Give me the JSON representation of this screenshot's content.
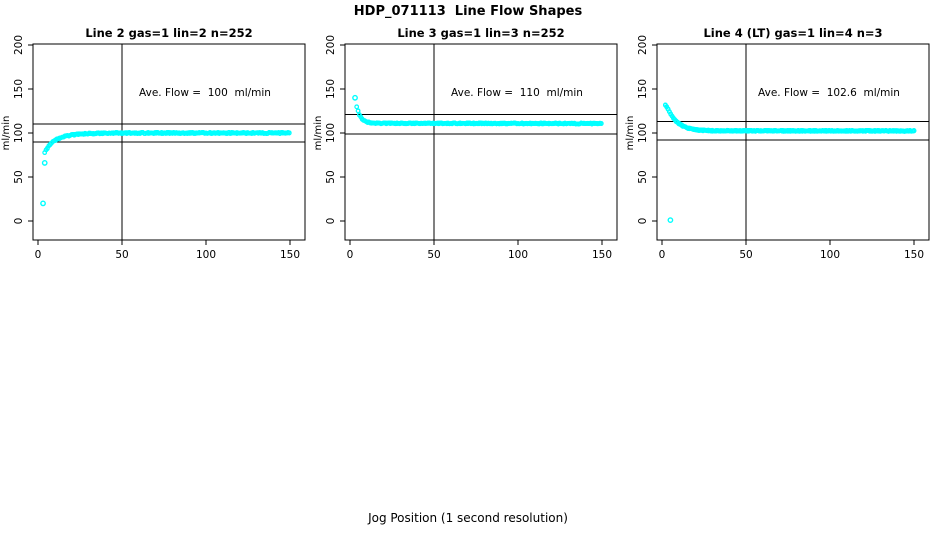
{
  "figure": {
    "title": "HDP_071113  Line Flow Shapes",
    "xlabel": "Jog Position (1 second resolution)",
    "ylabel": "ml/min",
    "background_color": "#FFFFFF",
    "point_color": "#00FFFF",
    "line_color": "#000000"
  },
  "chart_data": {
    "type": "scatter",
    "title": "HDP_071113  Line Flow Shapes",
    "xlabel": "Jog Position (1 second resolution)",
    "ylabel": "ml/min",
    "xlim": [
      0,
      150
    ],
    "ylim": [
      0,
      200
    ],
    "x_ticks": [
      0,
      50,
      100,
      150
    ],
    "y_ticks": [
      0,
      50,
      100,
      150,
      200
    ],
    "grid": false,
    "legend": null,
    "panels": [
      {
        "title": "Line 2 gas=1 lin=2 n=252",
        "annotation": "Ave. Flow =  100  ml/min",
        "ave_flow_ml_min": 100,
        "n": 252,
        "ref_lines_y": [
          110,
          90
        ],
        "vline_x": 50,
        "runs": 2,
        "jitter": 1.5,
        "points": [
          [
            4,
            78
          ],
          [
            5,
            81
          ],
          [
            6,
            84
          ],
          [
            7,
            86.5
          ],
          [
            8,
            88.5
          ],
          [
            9,
            90
          ],
          [
            10,
            91.5
          ],
          [
            12,
            93.5
          ],
          [
            14,
            95
          ],
          [
            16,
            96.2
          ],
          [
            18,
            97
          ],
          [
            20,
            97.7
          ],
          [
            25,
            98.8
          ],
          [
            30,
            99.3
          ],
          [
            40,
            99.8
          ],
          [
            50,
            100
          ],
          [
            75,
            100
          ],
          [
            100,
            100
          ],
          [
            125,
            100
          ],
          [
            150,
            100
          ]
        ],
        "outliers": [
          [
            3,
            20
          ],
          [
            4,
            66
          ]
        ]
      },
      {
        "title": "Line 3 gas=1 lin=3 n=252",
        "annotation": "Ave. Flow =  110  ml/min",
        "ave_flow_ml_min": 110,
        "n": 252,
        "ref_lines_y": [
          121,
          99
        ],
        "vline_x": 50,
        "runs": 2,
        "jitter": 1.3,
        "points": [
          [
            4,
            130
          ],
          [
            5,
            123.5
          ],
          [
            6,
            119
          ],
          [
            7,
            116.3
          ],
          [
            8,
            114.5
          ],
          [
            9,
            113.3
          ],
          [
            10,
            112.5
          ],
          [
            12,
            111.7
          ],
          [
            14,
            111.3
          ],
          [
            16,
            111.1
          ],
          [
            20,
            111
          ],
          [
            30,
            111
          ],
          [
            50,
            111
          ],
          [
            75,
            110.9
          ],
          [
            100,
            110.8
          ],
          [
            125,
            110.8
          ],
          [
            150,
            110.7
          ]
        ],
        "outliers": [
          [
            3,
            140
          ]
        ]
      },
      {
        "title": "Line 4 (LT) gas=1 lin=4 n=3",
        "annotation": "Ave. Flow =  102.6  ml/min",
        "ave_flow_ml_min": 102.6,
        "n": 3,
        "ref_lines_y": [
          112.9,
          92.3
        ],
        "vline_x": 50,
        "runs": 3,
        "jitter": 1.3,
        "points": [
          [
            2,
            132
          ],
          [
            3,
            129
          ],
          [
            4,
            125.5
          ],
          [
            5,
            122
          ],
          [
            6,
            119
          ],
          [
            7,
            116.4
          ],
          [
            8,
            114.2
          ],
          [
            9,
            112.4
          ],
          [
            10,
            110.8
          ],
          [
            12,
            108.3
          ],
          [
            14,
            106.5
          ],
          [
            16,
            105.2
          ],
          [
            18,
            104.2
          ],
          [
            20,
            103.6
          ],
          [
            25,
            102.9
          ],
          [
            30,
            102.6
          ],
          [
            40,
            102.5
          ],
          [
            50,
            102.5
          ],
          [
            75,
            102.4
          ],
          [
            100,
            102.4
          ],
          [
            125,
            102.4
          ],
          [
            150,
            102.4
          ]
        ],
        "outliers": [
          [
            5,
            1
          ]
        ]
      }
    ]
  }
}
